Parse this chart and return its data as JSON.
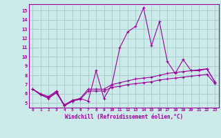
{
  "xlabel": "Windchill (Refroidissement éolien,°C)",
  "bg_color": "#cceaea",
  "grid_color": "#aacccc",
  "line_color": "#990099",
  "x_data": [
    0,
    1,
    2,
    3,
    4,
    5,
    6,
    7,
    8,
    9,
    10,
    11,
    12,
    13,
    14,
    15,
    16,
    17,
    18,
    19,
    20,
    21,
    22,
    23
  ],
  "line1": [
    6.5,
    6.0,
    5.7,
    6.3,
    4.7,
    5.2,
    5.5,
    5.2,
    8.5,
    5.5,
    7.0,
    11.0,
    12.7,
    13.3,
    15.3,
    11.2,
    13.8,
    9.5,
    8.2,
    9.7,
    8.5,
    8.5,
    8.7,
    7.3
  ],
  "line2": [
    6.5,
    5.9,
    5.6,
    6.2,
    4.8,
    5.3,
    5.5,
    6.5,
    6.5,
    6.5,
    7.0,
    7.2,
    7.4,
    7.6,
    7.7,
    7.8,
    8.0,
    8.2,
    8.3,
    8.4,
    8.5,
    8.6,
    8.7,
    7.3
  ],
  "line3": [
    6.5,
    5.9,
    5.5,
    6.1,
    4.7,
    5.2,
    5.4,
    6.3,
    6.3,
    6.3,
    6.7,
    6.8,
    7.0,
    7.1,
    7.2,
    7.3,
    7.5,
    7.6,
    7.7,
    7.8,
    7.9,
    8.0,
    8.1,
    7.1
  ],
  "ylim": [
    4.5,
    15.7
  ],
  "yticks": [
    5,
    6,
    7,
    8,
    9,
    10,
    11,
    12,
    13,
    14,
    15
  ],
  "xlim": [
    -0.5,
    23.5
  ]
}
